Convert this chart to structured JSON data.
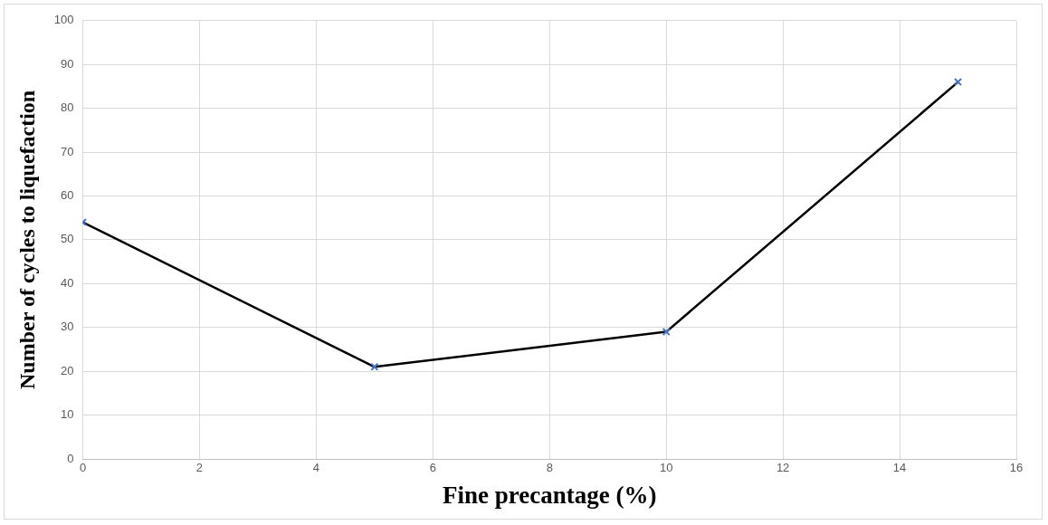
{
  "chart_data": {
    "type": "line",
    "xlabel": "Fine precantage (%)",
    "ylabel": "Number of cycles to liquefaction",
    "x": [
      0,
      5,
      10,
      15
    ],
    "series": [
      {
        "color": "#000000",
        "colors": [
          "#4472c4",
          "#4472c4",
          "#4472c4",
          "#4472c4"
        ],
        "values": [
          54,
          21,
          29,
          86
        ]
      }
    ],
    "xlim": [
      0,
      16
    ],
    "xticks": [
      0,
      2,
      4,
      6,
      8,
      10,
      12,
      14,
      16
    ],
    "ylim": [
      0,
      100
    ],
    "yticks": [
      0,
      10,
      20,
      30,
      40,
      50,
      60,
      70,
      80,
      90,
      100
    ],
    "grid": true,
    "legend": false,
    "marker": "cross",
    "line_style": "solid"
  }
}
